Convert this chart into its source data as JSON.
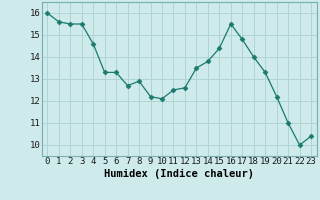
{
  "x": [
    0,
    1,
    2,
    3,
    4,
    5,
    6,
    7,
    8,
    9,
    10,
    11,
    12,
    13,
    14,
    15,
    16,
    17,
    18,
    19,
    20,
    21,
    22,
    23
  ],
  "y": [
    16.0,
    15.6,
    15.5,
    15.5,
    14.6,
    13.3,
    13.3,
    12.7,
    12.9,
    12.2,
    12.1,
    12.5,
    12.6,
    13.5,
    13.8,
    14.4,
    15.5,
    14.8,
    14.0,
    13.3,
    12.2,
    11.0,
    10.0,
    10.4
  ],
  "line_color": "#1a7a6e",
  "marker": "D",
  "marker_size": 2.5,
  "bg_color": "#ceeaea",
  "grid_color": "#b0d4d4",
  "xlabel": "Humidex (Indice chaleur)",
  "xlim": [
    -0.5,
    23.5
  ],
  "ylim": [
    9.5,
    16.5
  ],
  "yticks": [
    10,
    11,
    12,
    13,
    14,
    15,
    16
  ],
  "xticks": [
    0,
    1,
    2,
    3,
    4,
    5,
    6,
    7,
    8,
    9,
    10,
    11,
    12,
    13,
    14,
    15,
    16,
    17,
    18,
    19,
    20,
    21,
    22,
    23
  ],
  "label_fontsize": 7.5,
  "tick_fontsize": 6.5
}
